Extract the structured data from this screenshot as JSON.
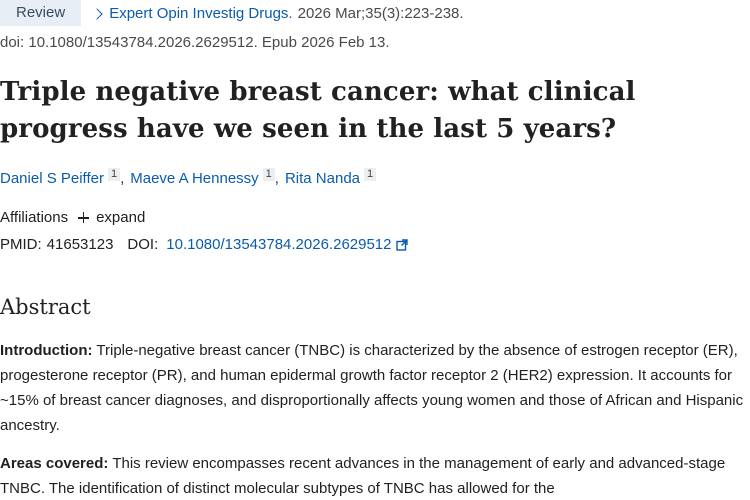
{
  "citation": {
    "type_badge": "Review",
    "journal": "Expert Opin Investig Drugs.",
    "date": "2026 Mar;35(3):223-238.",
    "doi_line": "doi: 10.1080/13543784.2026.2629512. Epub 2026 Feb 13."
  },
  "article": {
    "title": "Triple negative breast cancer: what clinical progress have we seen in the last 5 years?"
  },
  "authors": [
    {
      "name": "Daniel S Peiffer",
      "aff": "1"
    },
    {
      "name": "Maeve A Hennessy",
      "aff": "1"
    },
    {
      "name": "Rita Nanda",
      "aff": "1"
    }
  ],
  "author_separator": ",",
  "affiliations": {
    "label": "Affiliations",
    "expand_label": "expand"
  },
  "identifiers": {
    "pmid_label": "PMID:",
    "pmid": "41653123",
    "doi_label": "DOI:",
    "doi": "10.1080/13543784.2026.2629512"
  },
  "icons": {
    "journal": "chevron-right-icon",
    "expand": "plus-icon",
    "doi": "external-link-icon"
  },
  "colors": {
    "link": "#0b5cad",
    "badge_bg": "#e8eef5"
  },
  "abstract": {
    "heading": "Abstract",
    "sections": [
      {
        "label": "Introduction:",
        "text": "Triple-negative breast cancer (TNBC) is characterized by the absence of estrogen receptor (ER), progesterone receptor (PR), and human epidermal growth factor receptor 2 (HER2) expression. It accounts for ~15% of breast cancer diagnoses, and disproportionally affects young women and those of African and Hispanic ancestry."
      },
      {
        "label": "Areas covered:",
        "text": "This review encompasses recent advances in the management of early and advanced-stage TNBC. The identification of distinct molecular subtypes of TNBC has allowed for the"
      }
    ]
  }
}
